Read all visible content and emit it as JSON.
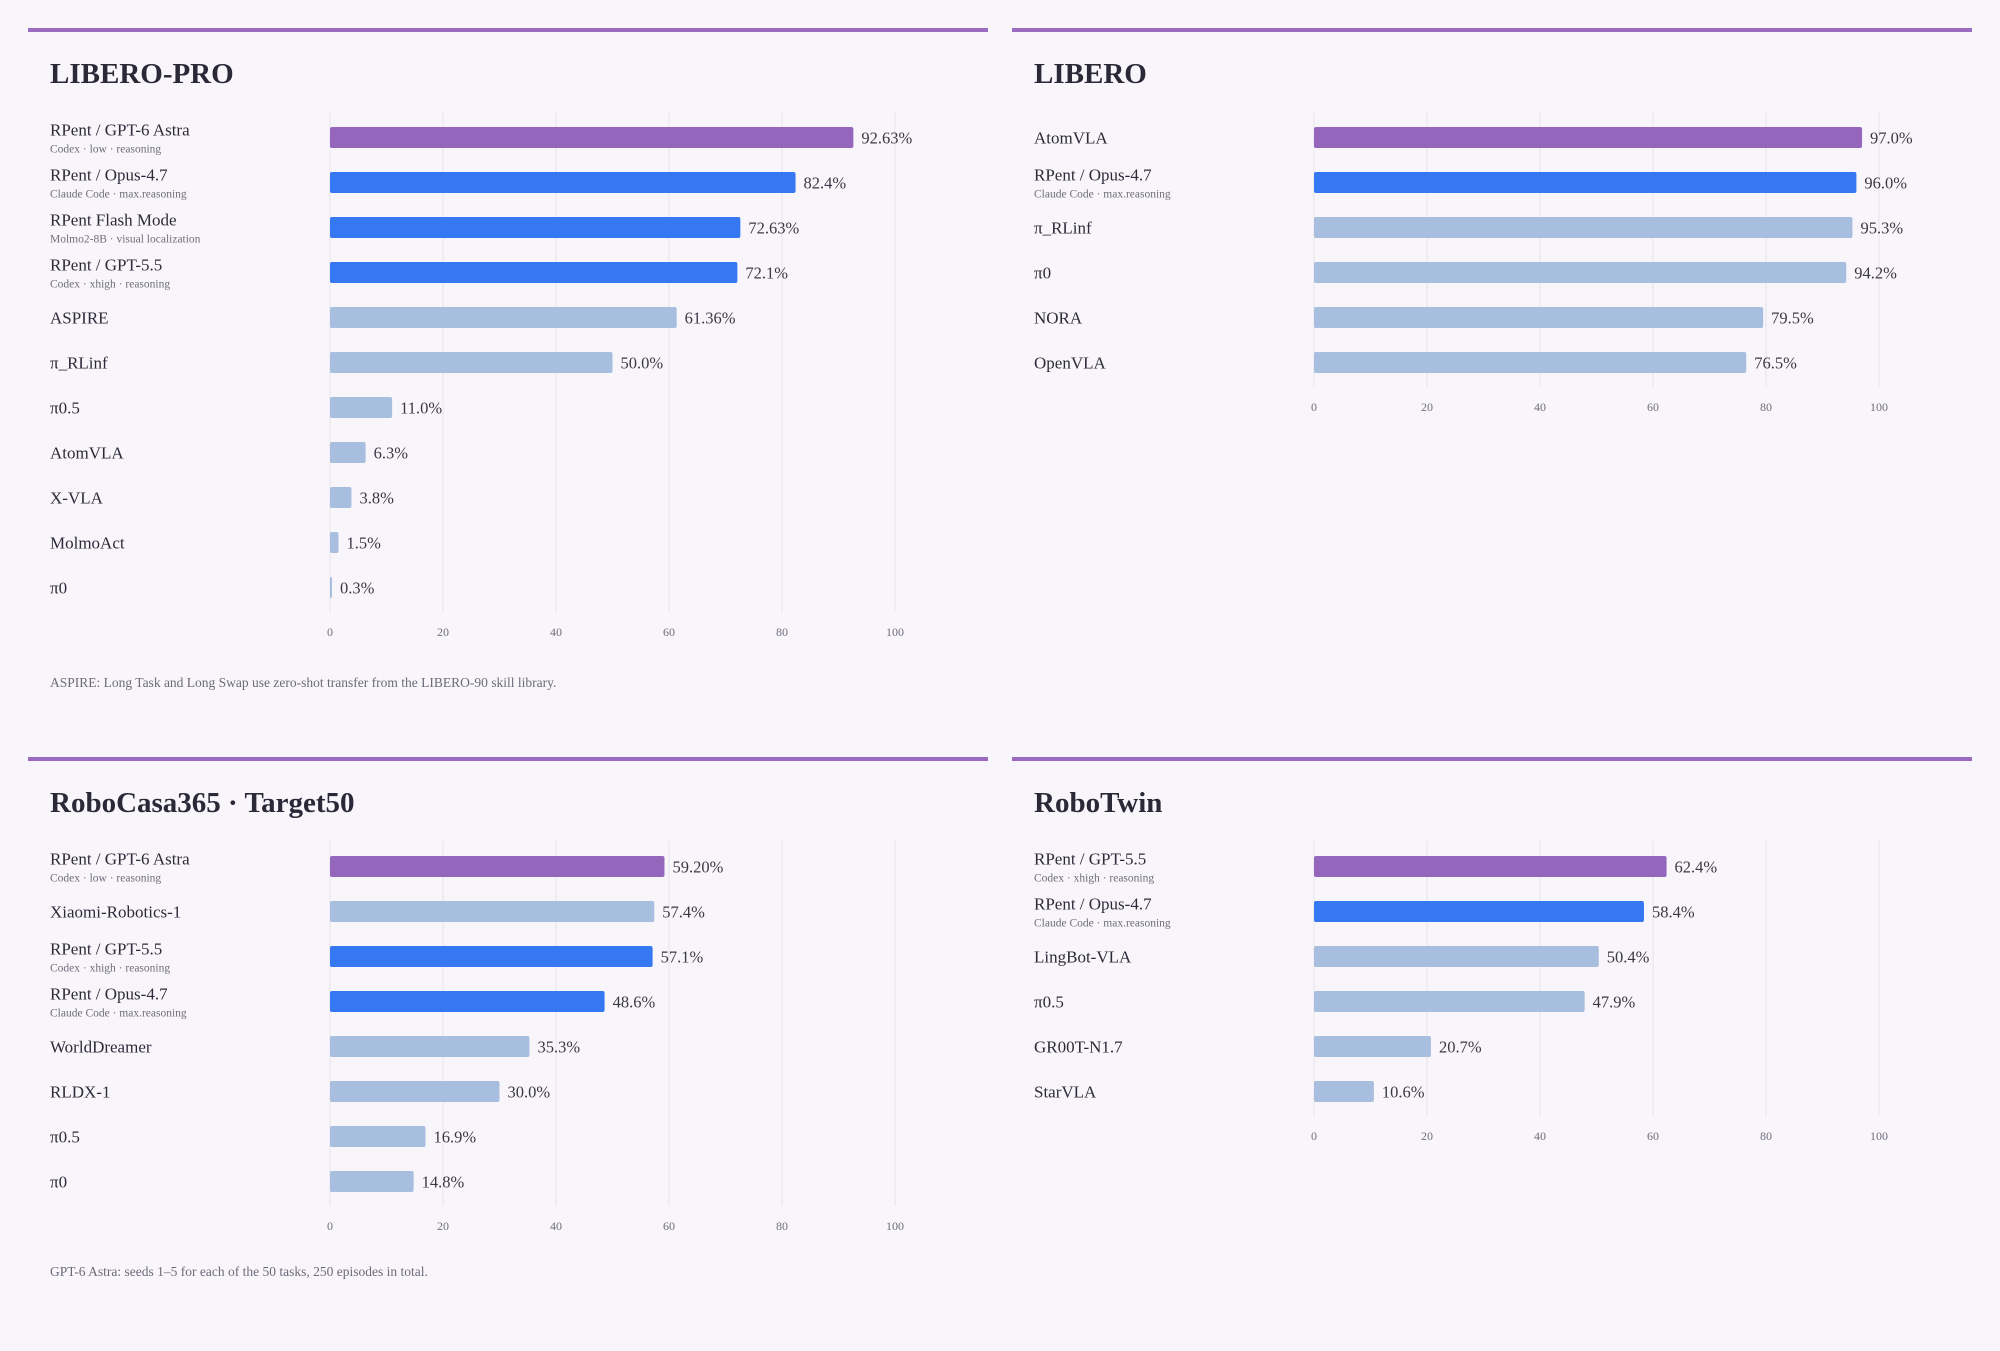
{
  "colors": {
    "top": "#9467bd",
    "rpent": "#3578f2",
    "baseline": "#a7bedf",
    "grid": "#e6e2ec",
    "rule": "#9a6bc1",
    "background": "#f9f6fb"
  },
  "chart_data": [
    {
      "type": "bar",
      "orientation": "horizontal",
      "title": "LIBERO-PRO",
      "xlim": [
        0,
        100
      ],
      "x_ticks": [
        "0",
        "20",
        "40",
        "60",
        "80",
        "100"
      ],
      "grid": true,
      "bars": [
        {
          "label": "RPent / GPT-6 Astra",
          "sublabel": "Codex · low · reasoning",
          "value": 92.63,
          "value_label": "92.63%",
          "color": "top"
        },
        {
          "label": "RPent / Opus-4.7",
          "sublabel": "Claude Code · max.reasoning",
          "value": 82.4,
          "value_label": "82.4%",
          "color": "rpent"
        },
        {
          "label": "RPent Flash Mode",
          "sublabel": "Molmo2-8B · visual localization",
          "value": 72.63,
          "value_label": "72.63%",
          "color": "rpent"
        },
        {
          "label": "RPent / GPT-5.5",
          "sublabel": "Codex · xhigh · reasoning",
          "value": 72.1,
          "value_label": "72.1%",
          "color": "rpent"
        },
        {
          "label": "ASPIRE",
          "value": 61.36,
          "value_label": "61.36%",
          "color": "baseline"
        },
        {
          "label": "π_RLinf",
          "value": 50.0,
          "value_label": "50.0%",
          "color": "baseline"
        },
        {
          "label": "π0.5",
          "value": 11.0,
          "value_label": "11.0%",
          "color": "baseline"
        },
        {
          "label": "AtomVLA",
          "value": 6.3,
          "value_label": "6.3%",
          "color": "baseline"
        },
        {
          "label": "X-VLA",
          "value": 3.8,
          "value_label": "3.8%",
          "color": "baseline"
        },
        {
          "label": "MolmoAct",
          "value": 1.5,
          "value_label": "1.5%",
          "color": "baseline"
        },
        {
          "label": "π0",
          "value": 0.3,
          "value_label": "0.3%",
          "color": "baseline"
        }
      ],
      "footnote": "ASPIRE: Long Task and Long Swap use zero-shot transfer from the LIBERO-90 skill library."
    },
    {
      "type": "bar",
      "orientation": "horizontal",
      "title": "LIBERO",
      "xlim": [
        0,
        100
      ],
      "x_ticks": [
        "0",
        "20",
        "40",
        "60",
        "80",
        "100"
      ],
      "grid": true,
      "bars": [
        {
          "label": "AtomVLA",
          "value": 97.0,
          "value_label": "97.0%",
          "color": "top"
        },
        {
          "label": "RPent / Opus-4.7",
          "sublabel": "Claude Code · max.reasoning",
          "value": 96.0,
          "value_label": "96.0%",
          "color": "rpent"
        },
        {
          "label": "π_RLinf",
          "value": 95.3,
          "value_label": "95.3%",
          "color": "baseline"
        },
        {
          "label": "π0",
          "value": 94.2,
          "value_label": "94.2%",
          "color": "baseline"
        },
        {
          "label": "NORA",
          "value": 79.5,
          "value_label": "79.5%",
          "color": "baseline"
        },
        {
          "label": "OpenVLA",
          "value": 76.5,
          "value_label": "76.5%",
          "color": "baseline"
        }
      ],
      "footnote": ""
    },
    {
      "type": "bar",
      "orientation": "horizontal",
      "title": "RoboCasa365 · Target50",
      "xlim": [
        0,
        100
      ],
      "x_ticks": [
        "0",
        "20",
        "40",
        "60",
        "80",
        "100"
      ],
      "grid": true,
      "bars": [
        {
          "label": "RPent / GPT-6 Astra",
          "sublabel": "Codex · low · reasoning",
          "value": 59.2,
          "value_label": "59.20%",
          "color": "top"
        },
        {
          "label": "Xiaomi-Robotics-1",
          "value": 57.4,
          "value_label": "57.4%",
          "color": "baseline"
        },
        {
          "label": "RPent / GPT-5.5",
          "sublabel": "Codex · xhigh · reasoning",
          "value": 57.1,
          "value_label": "57.1%",
          "color": "rpent"
        },
        {
          "label": "RPent / Opus-4.7",
          "sublabel": "Claude Code · max.reasoning",
          "value": 48.6,
          "value_label": "48.6%",
          "color": "rpent"
        },
        {
          "label": "WorldDreamer",
          "value": 35.3,
          "value_label": "35.3%",
          "color": "baseline"
        },
        {
          "label": "RLDX-1",
          "value": 30.0,
          "value_label": "30.0%",
          "color": "baseline"
        },
        {
          "label": "π0.5",
          "value": 16.9,
          "value_label": "16.9%",
          "color": "baseline"
        },
        {
          "label": "π0",
          "value": 14.8,
          "value_label": "14.8%",
          "color": "baseline"
        }
      ],
      "footnote": "GPT-6 Astra: seeds 1–5 for each of the 50 tasks, 250 episodes in total."
    },
    {
      "type": "bar",
      "orientation": "horizontal",
      "title": "RoboTwin",
      "xlim": [
        0,
        100
      ],
      "x_ticks": [
        "0",
        "20",
        "40",
        "60",
        "80",
        "100"
      ],
      "grid": true,
      "bars": [
        {
          "label": "RPent / GPT-5.5",
          "sublabel": "Codex · xhigh · reasoning",
          "value": 62.4,
          "value_label": "62.4%",
          "color": "top"
        },
        {
          "label": "RPent / Opus-4.7",
          "sublabel": "Claude Code · max.reasoning",
          "value": 58.4,
          "value_label": "58.4%",
          "color": "rpent"
        },
        {
          "label": "LingBot-VLA",
          "value": 50.4,
          "value_label": "50.4%",
          "color": "baseline"
        },
        {
          "label": "π0.5",
          "value": 47.9,
          "value_label": "47.9%",
          "color": "baseline"
        },
        {
          "label": "GR00T-N1.7",
          "value": 20.7,
          "value_label": "20.7%",
          "color": "baseline"
        },
        {
          "label": "StarVLA",
          "value": 10.6,
          "value_label": "10.6%",
          "color": "baseline"
        }
      ],
      "footnote": ""
    }
  ]
}
